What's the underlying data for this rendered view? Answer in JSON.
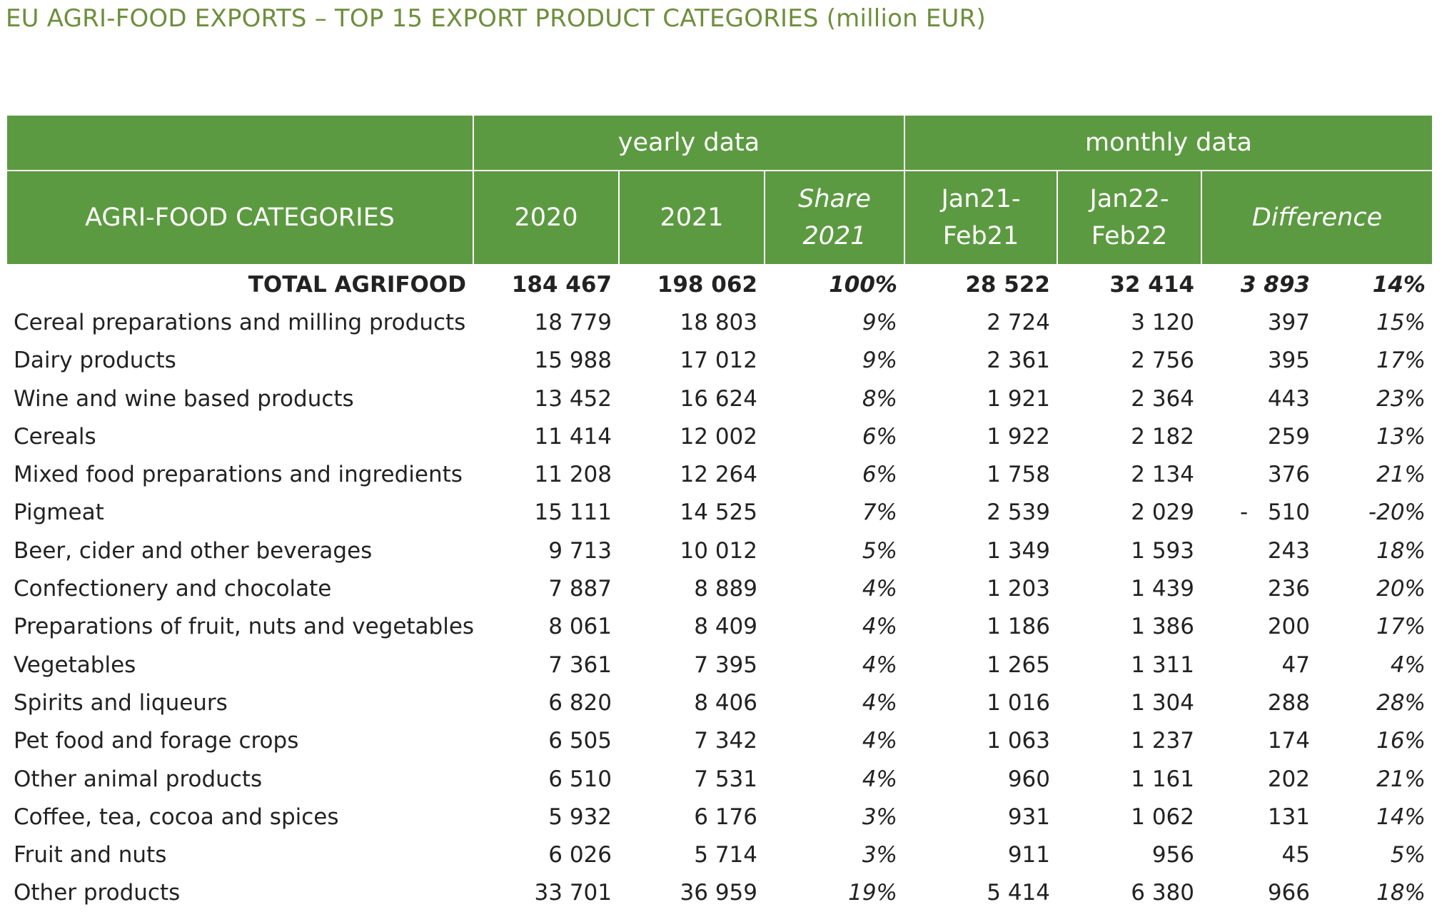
{
  "title": "EU AGRI-FOOD EXPORTS – TOP 15 EXPORT PRODUCT CATEGORIES (million EUR)",
  "colors": {
    "header_bg": "#5c9a41",
    "header_text": "#ffffff",
    "title_text": "#6e8e3c"
  },
  "header": {
    "group_yearly": "yearly data",
    "group_monthly": "monthly data",
    "categories": "AGRI-FOOD CATEGORIES",
    "y2020": "2020",
    "y2021": "2021",
    "share_line1": "Share",
    "share_line2": "2021",
    "m21_line1": "Jan21-",
    "m21_line2": "Feb21",
    "m22_line1": "Jan22-",
    "m22_line2": "Feb22",
    "difference": "Difference"
  },
  "chart_data": {
    "type": "table",
    "title": "EU AGRI-FOOD EXPORTS – TOP 15 EXPORT PRODUCT CATEGORIES (million EUR)",
    "columns": [
      "AGRI-FOOD CATEGORIES",
      "2020",
      "2021",
      "Share 2021",
      "Jan21-Feb21",
      "Jan22-Feb22",
      "Difference",
      "Difference %"
    ],
    "total": {
      "name": "TOTAL AGRIFOOD",
      "y2020": "184 467",
      "y2021": "198 062",
      "share": "100%",
      "m21": "28 522",
      "m22": "32 414",
      "diff": "3 893",
      "diff_pct": "14%"
    },
    "rows": [
      {
        "name": "Cereal preparations and milling products",
        "y2020": "18 779",
        "y2021": "18 803",
        "share": "9%",
        "m21": "2 724",
        "m22": "3 120",
        "diff": "397",
        "diff_pct": "15%"
      },
      {
        "name": "Dairy products",
        "y2020": "15 988",
        "y2021": "17 012",
        "share": "9%",
        "m21": "2 361",
        "m22": "2 756",
        "diff": "395",
        "diff_pct": "17%"
      },
      {
        "name": "Wine and wine based products",
        "y2020": "13 452",
        "y2021": "16 624",
        "share": "8%",
        "m21": "1 921",
        "m22": "2 364",
        "diff": "443",
        "diff_pct": "23%"
      },
      {
        "name": "Cereals",
        "y2020": "11 414",
        "y2021": "12 002",
        "share": "6%",
        "m21": "1 922",
        "m22": "2 182",
        "diff": "259",
        "diff_pct": "13%"
      },
      {
        "name": "Mixed food preparations and ingredients",
        "y2020": "11 208",
        "y2021": "12 264",
        "share": "6%",
        "m21": "1 758",
        "m22": "2 134",
        "diff": "376",
        "diff_pct": "21%"
      },
      {
        "name": "Pigmeat",
        "y2020": "15 111",
        "y2021": "14 525",
        "share": "7%",
        "m21": "2 539",
        "m22": "2 029",
        "diff": "510",
        "diff_sign": "-",
        "diff_pct": "-20%"
      },
      {
        "name": "Beer, cider and other beverages",
        "y2020": "9 713",
        "y2021": "10 012",
        "share": "5%",
        "m21": "1 349",
        "m22": "1 593",
        "diff": "243",
        "diff_pct": "18%"
      },
      {
        "name": "Confectionery and chocolate",
        "y2020": "7 887",
        "y2021": "8 889",
        "share": "4%",
        "m21": "1 203",
        "m22": "1 439",
        "diff": "236",
        "diff_pct": "20%"
      },
      {
        "name": "Preparations of fruit, nuts and vegetables",
        "y2020": "8 061",
        "y2021": "8 409",
        "share": "4%",
        "m21": "1 186",
        "m22": "1 386",
        "diff": "200",
        "diff_pct": "17%"
      },
      {
        "name": "Vegetables",
        "y2020": "7 361",
        "y2021": "7 395",
        "share": "4%",
        "m21": "1 265",
        "m22": "1 311",
        "diff": "47",
        "diff_pct": "4%"
      },
      {
        "name": "Spirits and liqueurs",
        "y2020": "6 820",
        "y2021": "8 406",
        "share": "4%",
        "m21": "1 016",
        "m22": "1 304",
        "diff": "288",
        "diff_pct": "28%"
      },
      {
        "name": "Pet food and forage crops",
        "y2020": "6 505",
        "y2021": "7 342",
        "share": "4%",
        "m21": "1 063",
        "m22": "1 237",
        "diff": "174",
        "diff_pct": "16%"
      },
      {
        "name": "Other animal products",
        "y2020": "6 510",
        "y2021": "7 531",
        "share": "4%",
        "m21": "960",
        "m22": "1 161",
        "diff": "202",
        "diff_pct": "21%"
      },
      {
        "name": "Coffee, tea, cocoa and spices",
        "y2020": "5 932",
        "y2021": "6 176",
        "share": "3%",
        "m21": "931",
        "m22": "1 062",
        "diff": "131",
        "diff_pct": "14%"
      },
      {
        "name": "Fruit and nuts",
        "y2020": "6 026",
        "y2021": "5 714",
        "share": "3%",
        "m21": "911",
        "m22": "956",
        "diff": "45",
        "diff_pct": "5%"
      },
      {
        "name": "Other products",
        "y2020": "33 701",
        "y2021": "36 959",
        "share": "19%",
        "m21": "5 414",
        "m22": "6 380",
        "diff": "966",
        "diff_pct": "18%"
      }
    ]
  }
}
